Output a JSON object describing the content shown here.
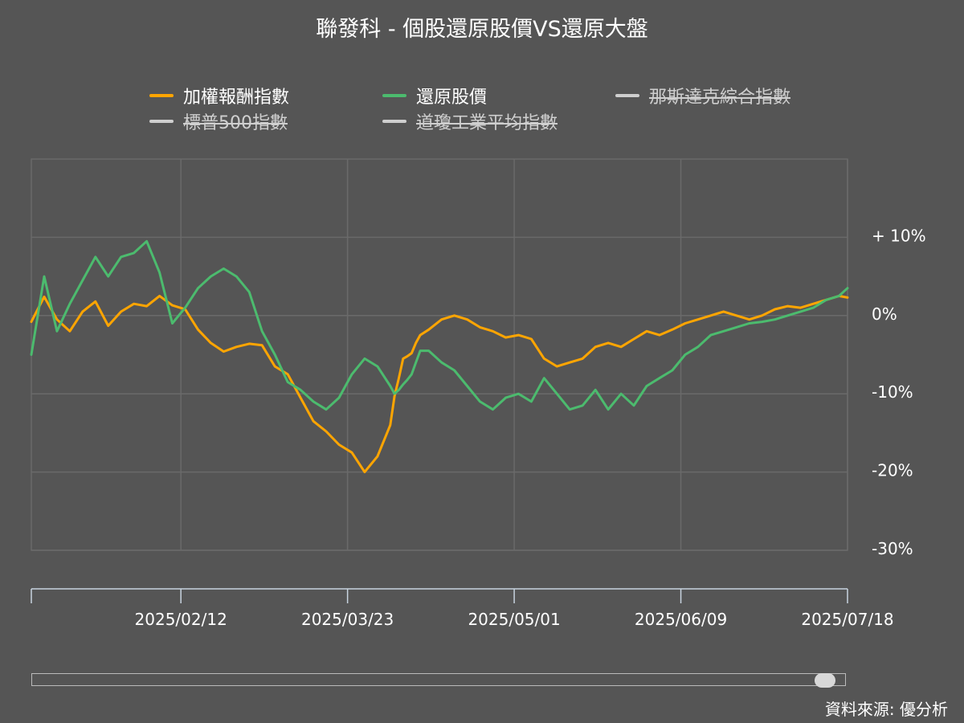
{
  "chart_data": {
    "type": "line",
    "title": "聯發科 - 個股還原股價VS還原大盤",
    "y_tick_labels": [
      "+ 10%",
      "0%",
      "-10%",
      "-20%",
      "-30%"
    ],
    "y_ticks": [
      10,
      0,
      -10,
      -20,
      -30
    ],
    "ylim": [
      -30,
      20
    ],
    "x_tick_labels": [
      "2025/02/12",
      "2025/03/23",
      "2025/05/01",
      "2025/06/09",
      "2025/07/18"
    ],
    "x_ticks": [
      35,
      74,
      113,
      152,
      191
    ],
    "xlim": [
      0,
      191
    ],
    "grid": true,
    "legend_position": "top",
    "series": [
      {
        "name": "加權報酬指數",
        "color": "#FFA500",
        "visible": true,
        "x": [
          0,
          3,
          6,
          9,
          12,
          15,
          18,
          21,
          24,
          27,
          30,
          33,
          36,
          39,
          42,
          45,
          48,
          51,
          54,
          57,
          60,
          63,
          66,
          69,
          72,
          75,
          78,
          81,
          84,
          85,
          86,
          87,
          88,
          89,
          90,
          91,
          93,
          96,
          99,
          102,
          105,
          108,
          111,
          114,
          117,
          120,
          123,
          126,
          129,
          132,
          135,
          138,
          141,
          144,
          147,
          150,
          153,
          156,
          159,
          162,
          165,
          168,
          171,
          174,
          177,
          180,
          183,
          186,
          189,
          191
        ],
        "values": [
          -0.8,
          2.4,
          -0.5,
          -2.0,
          0.5,
          1.8,
          -1.3,
          0.5,
          1.5,
          1.2,
          2.5,
          1.3,
          0.8,
          -1.8,
          -3.5,
          -4.6,
          -4.0,
          -3.6,
          -3.8,
          -6.5,
          -7.5,
          -10.5,
          -13.5,
          -14.8,
          -16.5,
          -17.5,
          -20.0,
          -18.0,
          -14.0,
          -10.3,
          -8.0,
          -5.5,
          -5.2,
          -4.8,
          -3.5,
          -2.5,
          -1.8,
          -0.5,
          0.0,
          -0.5,
          -1.5,
          -2.0,
          -2.8,
          -2.5,
          -3.0,
          -5.5,
          -6.5,
          -6.0,
          -5.5,
          -4.0,
          -3.5,
          -4.0,
          -3.0,
          -2.0,
          -2.5,
          -1.8,
          -1.0,
          -0.5,
          0.0,
          0.5,
          0.0,
          -0.5,
          0.0,
          0.8,
          1.2,
          1.0,
          1.5,
          2.0,
          2.5,
          2.3
        ]
      },
      {
        "name": "還原股價",
        "color": "#4CBB6E",
        "visible": true,
        "x": [
          0,
          3,
          6,
          9,
          12,
          15,
          18,
          21,
          24,
          27,
          30,
          33,
          36,
          39,
          42,
          45,
          48,
          51,
          54,
          57,
          60,
          63,
          66,
          69,
          72,
          75,
          78,
          81,
          84,
          85,
          86,
          87,
          88,
          89,
          90,
          91,
          93,
          96,
          99,
          102,
          105,
          108,
          111,
          114,
          117,
          120,
          123,
          126,
          129,
          132,
          135,
          138,
          141,
          144,
          147,
          150,
          153,
          156,
          159,
          162,
          165,
          168,
          171,
          174,
          177,
          180,
          183,
          186,
          189,
          191
        ],
        "values": [
          -5.0,
          5.0,
          -2.0,
          1.5,
          4.5,
          7.5,
          5.0,
          7.5,
          8.0,
          9.5,
          5.5,
          -1.0,
          1.0,
          3.5,
          5.0,
          6.0,
          5.0,
          3.0,
          -2.0,
          -5.0,
          -8.5,
          -9.5,
          -11.0,
          -12.0,
          -10.5,
          -7.5,
          -5.5,
          -6.5,
          -9.0,
          -10.0,
          -9.5,
          -8.8,
          -8.2,
          -7.5,
          -6.0,
          -4.5,
          -4.5,
          -6.0,
          -7.0,
          -9.0,
          -11.0,
          -12.0,
          -10.5,
          -10.0,
          -11.0,
          -8.0,
          -10.0,
          -12.0,
          -11.5,
          -9.5,
          -12.0,
          -10.0,
          -11.5,
          -9.0,
          -8.0,
          -7.0,
          -5.0,
          -4.0,
          -2.5,
          -2.0,
          -1.5,
          -1.0,
          -0.8,
          -0.5,
          0.0,
          0.5,
          1.0,
          2.0,
          2.5,
          3.5
        ]
      },
      {
        "name": "那斯達克綜合指數",
        "color": "#CFCFCF",
        "visible": false,
        "x": [],
        "values": []
      },
      {
        "name": "標普500指數",
        "color": "#CFCFCF",
        "visible": false,
        "x": [],
        "values": []
      },
      {
        "name": "道瓊工業平均指數",
        "color": "#CFCFCF",
        "visible": false,
        "x": [],
        "values": []
      }
    ]
  },
  "source_note": "資料來源: 優分析"
}
